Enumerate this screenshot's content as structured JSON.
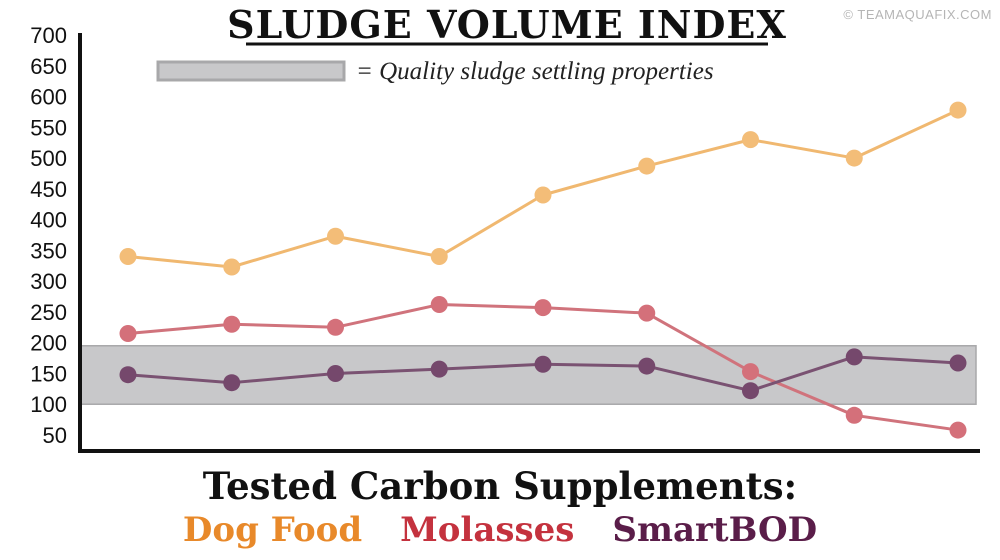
{
  "credit": "© TEAMAQUAFIX.COM",
  "colors": {
    "band_fill": "#c8c8ca",
    "band_stroke": "#a8a8aa",
    "axis": "#111111"
  },
  "chart_data": {
    "type": "line",
    "title": "SLUDGE VOLUME INDEX",
    "xlabel": "Tested Carbon Supplements:",
    "ylabel": "",
    "ylim": [
      30,
      700
    ],
    "yticks": [
      50,
      100,
      150,
      200,
      250,
      300,
      350,
      400,
      450,
      500,
      550,
      600,
      650,
      700
    ],
    "x": [
      1,
      2,
      3,
      4,
      5,
      6,
      7,
      8,
      9
    ],
    "band": {
      "range": [
        100,
        195
      ],
      "label": "= Quality sludge settling properties"
    },
    "series": [
      {
        "name": "Dog Food",
        "label_color": "#e8892a",
        "line_color": "#f0b870",
        "marker_color": "#f3bd78",
        "values": [
          340,
          323,
          373,
          340,
          440,
          487,
          530,
          500,
          578
        ]
      },
      {
        "name": "Molasses",
        "label_color": "#c4323e",
        "line_color": "#d0737c",
        "marker_color": "#d4707a",
        "values": [
          215,
          230,
          225,
          262,
          257,
          248,
          153,
          82,
          58
        ]
      },
      {
        "name": "SmartBOD",
        "label_color": "#5a1d49",
        "line_color": "#7a5272",
        "marker_color": "#75486c",
        "values": [
          148,
          135,
          150,
          157,
          165,
          162,
          122,
          177,
          167
        ]
      }
    ]
  }
}
